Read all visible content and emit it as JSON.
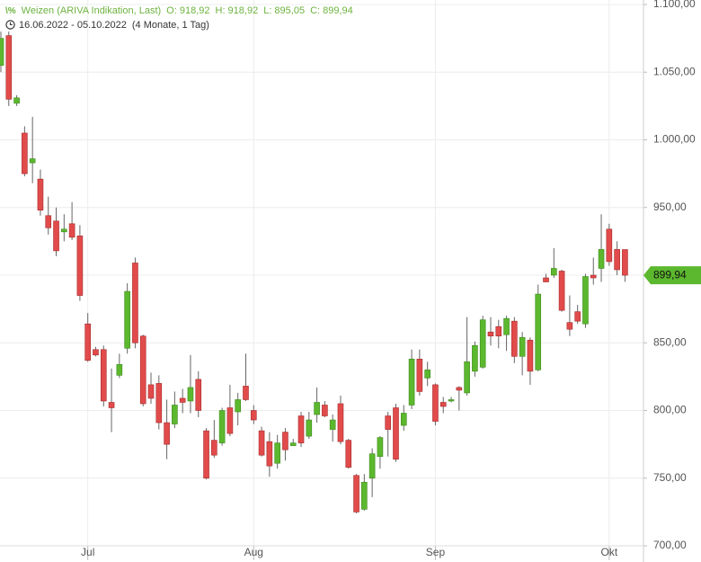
{
  "chart_data": {
    "type": "candlestick",
    "title": "Weizen (ARIVA Indikation, Last)",
    "header_stats": [
      "O: 918,92",
      "H: 918,92",
      "L: 895,05",
      "C: 899,94"
    ],
    "date_range": "16.06.2022 - 05.10.2022",
    "period": "(4 Monate, 1 Tag)",
    "categories": [
      null,
      null,
      null,
      null,
      null,
      null,
      null,
      null,
      null,
      null,
      null,
      "Jul",
      null,
      null,
      null,
      null,
      null,
      null,
      null,
      null,
      null,
      null,
      null,
      null,
      null,
      null,
      null,
      null,
      null,
      null,
      null,
      null,
      "Aug",
      null,
      null,
      null,
      null,
      null,
      null,
      null,
      null,
      null,
      null,
      null,
      null,
      null,
      null,
      null,
      null,
      null,
      null,
      null,
      null,
      null,
      null,
      "Sep",
      null,
      null,
      null,
      null,
      null,
      null,
      null,
      null,
      null,
      null,
      null,
      null,
      null,
      null,
      null,
      null,
      null,
      null,
      null,
      null,
      null,
      "Okt",
      null,
      null
    ],
    "open": [
      1055,
      1077,
      1027,
      1005,
      983,
      971,
      944,
      940,
      932,
      938,
      929,
      864,
      845,
      845,
      806,
      826,
      846,
      909,
      855,
      819,
      820,
      791,
      790,
      809,
      807,
      823,
      785,
      778,
      776,
      802,
      799,
      818,
      800,
      785,
      777,
      761,
      784,
      774,
      796,
      781,
      797,
      804,
      786,
      805,
      778,
      752,
      727,
      750,
      766,
      796,
      802,
      789,
      804,
      838,
      824,
      819,
      806,
      807,
      817,
      813,
      829,
      832,
      858,
      862,
      856,
      866,
      840,
      852,
      830,
      898,
      900,
      903,
      865,
      873,
      864,
      900,
      905,
      934,
      919,
      918.92
    ],
    "high": [
      1080,
      1080,
      1033,
      1010,
      1017,
      978,
      958,
      950,
      945,
      954,
      937,
      872,
      847,
      848,
      831,
      842,
      894,
      913,
      856,
      828,
      826,
      808,
      814,
      816,
      841,
      829,
      787,
      793,
      802,
      819,
      813,
      842,
      804,
      788,
      784,
      782,
      787,
      779,
      799,
      799,
      817,
      807,
      797,
      811,
      779,
      753,
      753,
      772,
      781,
      799,
      805,
      804,
      845,
      845,
      836,
      820,
      810,
      810,
      818,
      869,
      851,
      870,
      869,
      867,
      870,
      869,
      858,
      854,
      893,
      901,
      920,
      904,
      885,
      878,
      901,
      913,
      945,
      938,
      925,
      918.92
    ],
    "low": [
      1050,
      1025,
      1025,
      973,
      968,
      944,
      930,
      914,
      925,
      926,
      881,
      836,
      840,
      803,
      784,
      824,
      842,
      846,
      803,
      805,
      786,
      764,
      787,
      798,
      798,
      795,
      749,
      765,
      774,
      781,
      789,
      807,
      790,
      766,
      751,
      757,
      763,
      774,
      773,
      779,
      791,
      795,
      777,
      775,
      757,
      724,
      726,
      736,
      757,
      766,
      762,
      785,
      801,
      811,
      818,
      789,
      798,
      806,
      800,
      811,
      825,
      831,
      848,
      846,
      844,
      835,
      826,
      819,
      829,
      895,
      898,
      873,
      855,
      864,
      861,
      893,
      895,
      907,
      900,
      895.05
    ],
    "close": [
      1075,
      1030,
      1031,
      975,
      986,
      948,
      935,
      918,
      934,
      928,
      885,
      837,
      841,
      807,
      802,
      834,
      888,
      850,
      805,
      809,
      791,
      775,
      804,
      806,
      817,
      800,
      750,
      767,
      800,
      783,
      808,
      808,
      793,
      767,
      759,
      776,
      771,
      776,
      776,
      793,
      806,
      796,
      793,
      777,
      758,
      725,
      747,
      768,
      780,
      786,
      764,
      798,
      838,
      814,
      830,
      792,
      803,
      808,
      815,
      836,
      848,
      867,
      855,
      855,
      868,
      840,
      854,
      829,
      886,
      895,
      905,
      874,
      860,
      866,
      899,
      898,
      919,
      910,
      904,
      899.94
    ],
    "up_color": "#5cb82e",
    "down_color": "#e24b4b",
    "last_price": {
      "value": 899.94,
      "label": "899,94"
    },
    "ylim": [
      700,
      1100
    ],
    "yticks": [
      {
        "value": 700,
        "label": "700,00"
      },
      {
        "value": 750,
        "label": "750,00"
      },
      {
        "value": 800,
        "label": "800,00"
      },
      {
        "value": 850,
        "label": "850,00"
      },
      {
        "value": 900,
        "label": "900,00"
      },
      {
        "value": 950,
        "label": "950,00"
      },
      {
        "value": 1000,
        "label": "1.000,00"
      },
      {
        "value": 1050,
        "label": "1.050,00"
      },
      {
        "value": 1100,
        "label": "1.100,00"
      }
    ],
    "grid": true
  }
}
